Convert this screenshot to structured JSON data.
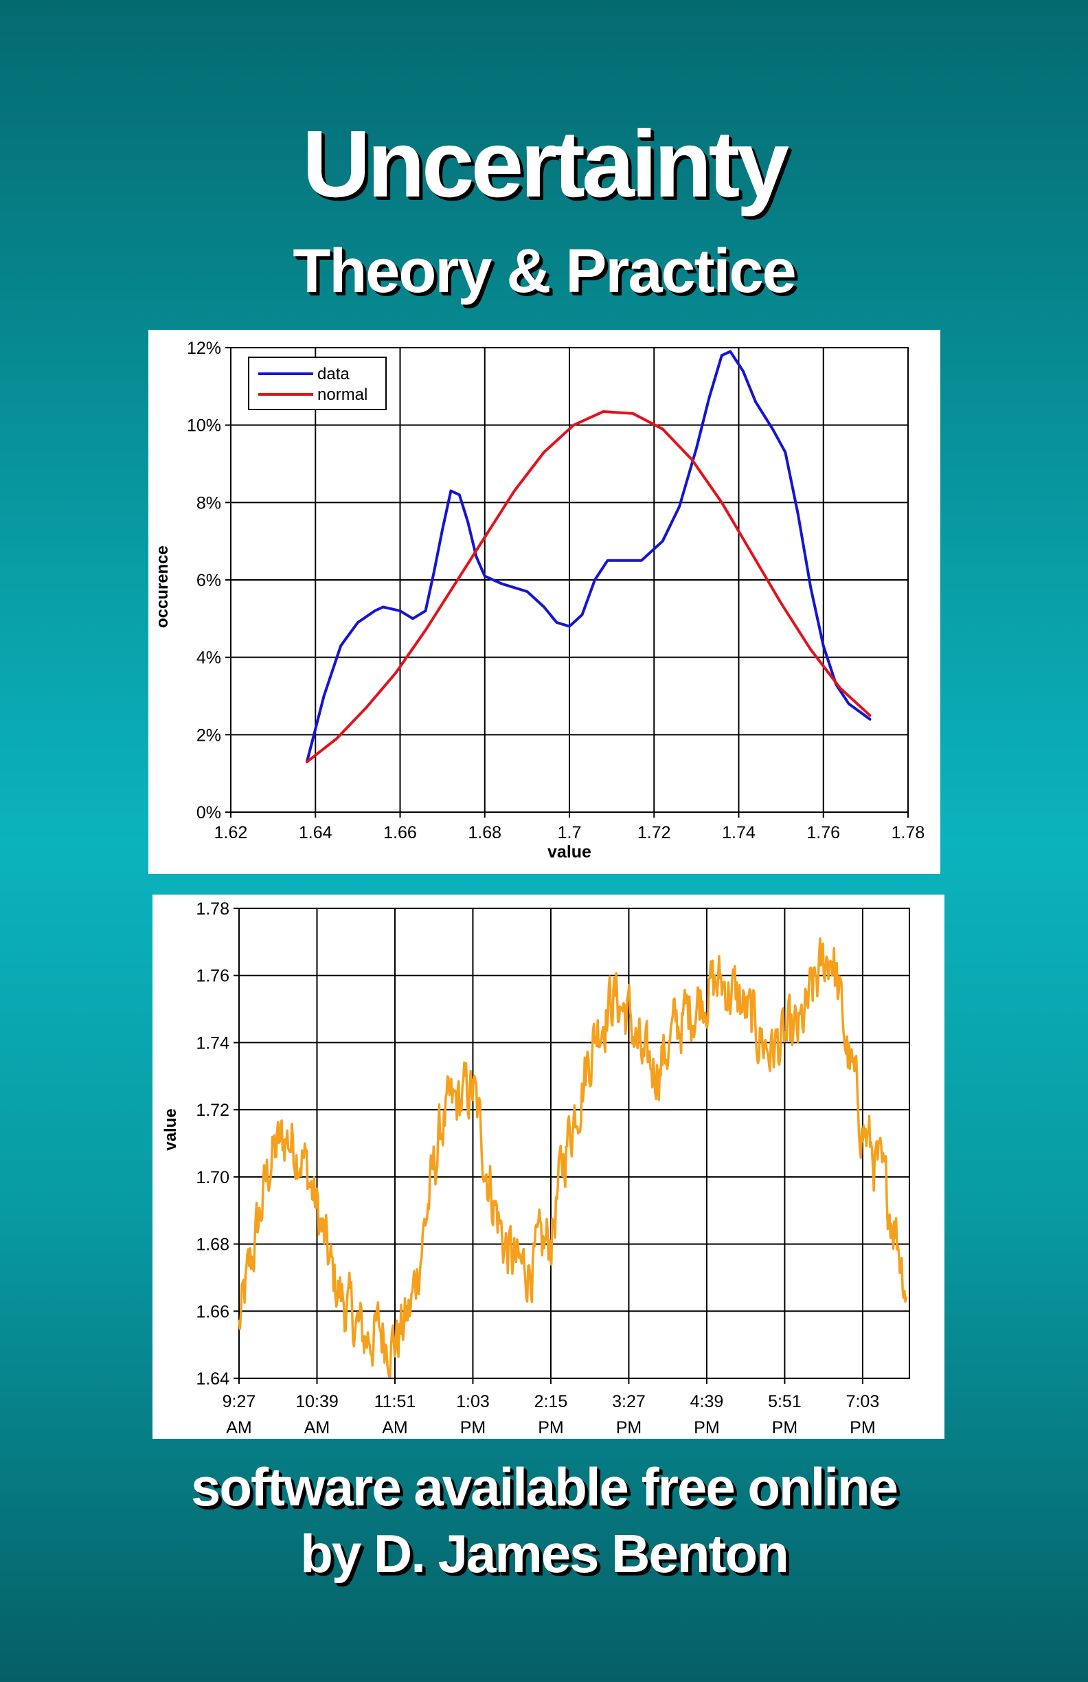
{
  "cover": {
    "title": "Uncertainty",
    "subtitle": "Theory & Practice",
    "footer_line1": "software available free online",
    "footer_line2": "by D. James Benton"
  },
  "colors": {
    "data": "#1515d0",
    "normal": "#e0141c",
    "timeseries": "#f5a01c"
  },
  "chart_data": [
    {
      "type": "line",
      "xlabel": "value",
      "ylabel": "occurence",
      "xlim": [
        1.62,
        1.78
      ],
      "ylim": [
        0,
        12
      ],
      "x_ticks": [
        "1.62",
        "1.64",
        "1.66",
        "1.68",
        "1.7",
        "1.72",
        "1.74",
        "1.76",
        "1.78"
      ],
      "y_ticks": [
        "0%",
        "2%",
        "4%",
        "6%",
        "8%",
        "10%",
        "12%"
      ],
      "grid": true,
      "legend": "top-left",
      "series": [
        {
          "name": "data",
          "color": "#1515d0",
          "points": [
            [
              1.638,
              1.3
            ],
            [
              1.642,
              3.0
            ],
            [
              1.646,
              4.3
            ],
            [
              1.65,
              4.9
            ],
            [
              1.654,
              5.2
            ],
            [
              1.656,
              5.3
            ],
            [
              1.66,
              5.2
            ],
            [
              1.663,
              5.0
            ],
            [
              1.666,
              5.2
            ],
            [
              1.668,
              6.2
            ],
            [
              1.67,
              7.3
            ],
            [
              1.672,
              8.3
            ],
            [
              1.674,
              8.2
            ],
            [
              1.676,
              7.5
            ],
            [
              1.678,
              6.6
            ],
            [
              1.68,
              6.1
            ],
            [
              1.684,
              5.9
            ],
            [
              1.69,
              5.7
            ],
            [
              1.694,
              5.3
            ],
            [
              1.697,
              4.9
            ],
            [
              1.7,
              4.8
            ],
            [
              1.703,
              5.1
            ],
            [
              1.706,
              6.0
            ],
            [
              1.709,
              6.5
            ],
            [
              1.714,
              6.5
            ],
            [
              1.717,
              6.5
            ],
            [
              1.722,
              7.0
            ],
            [
              1.726,
              7.9
            ],
            [
              1.73,
              9.4
            ],
            [
              1.733,
              10.7
            ],
            [
              1.736,
              11.8
            ],
            [
              1.738,
              11.9
            ],
            [
              1.741,
              11.4
            ],
            [
              1.744,
              10.6
            ],
            [
              1.748,
              9.9
            ],
            [
              1.751,
              9.3
            ],
            [
              1.754,
              7.7
            ],
            [
              1.757,
              5.8
            ],
            [
              1.76,
              4.3
            ],
            [
              1.763,
              3.3
            ],
            [
              1.766,
              2.8
            ],
            [
              1.771,
              2.4
            ]
          ]
        },
        {
          "name": "normal",
          "color": "#e0141c",
          "points": [
            [
              1.638,
              1.3
            ],
            [
              1.645,
              1.9
            ],
            [
              1.652,
              2.7
            ],
            [
              1.659,
              3.6
            ],
            [
              1.666,
              4.7
            ],
            [
              1.673,
              5.9
            ],
            [
              1.68,
              7.1
            ],
            [
              1.687,
              8.3
            ],
            [
              1.694,
              9.3
            ],
            [
              1.701,
              10.0
            ],
            [
              1.708,
              10.35
            ],
            [
              1.715,
              10.3
            ],
            [
              1.722,
              9.9
            ],
            [
              1.729,
              9.1
            ],
            [
              1.736,
              8.0
            ],
            [
              1.743,
              6.7
            ],
            [
              1.75,
              5.4
            ],
            [
              1.757,
              4.2
            ],
            [
              1.764,
              3.2
            ],
            [
              1.771,
              2.5
            ]
          ]
        }
      ]
    },
    {
      "type": "line",
      "xlabel": "",
      "ylabel": "value",
      "ylim": [
        1.64,
        1.78
      ],
      "x_ticks": [
        "9:27 AM",
        "10:39 AM",
        "11:51 AM",
        "1:03 PM",
        "2:15 PM",
        "3:27 PM",
        "4:39 PM",
        "5:51 PM",
        "7:03 PM"
      ],
      "y_ticks": [
        "1.64",
        "1.66",
        "1.68",
        "1.70",
        "1.72",
        "1.74",
        "1.76",
        "1.78"
      ],
      "grid": true,
      "series": [
        {
          "color": "#f5a01c",
          "noisy": true,
          "x": [
            0.0,
            0.2,
            0.4,
            0.6,
            0.8,
            1.0,
            1.2,
            1.4,
            1.6,
            1.8,
            2.0,
            2.2,
            2.4,
            2.6,
            2.8,
            3.0,
            3.2,
            3.4,
            3.6,
            3.8,
            4.0,
            4.2,
            4.4,
            4.6,
            4.8,
            5.0,
            5.2,
            5.4,
            5.6,
            5.8,
            6.0,
            6.2,
            6.4,
            6.6,
            6.8,
            7.0,
            7.2,
            7.4,
            7.6,
            7.8,
            8.0,
            8.2,
            8.4,
            8.56
          ],
          "values": [
            1.655,
            1.68,
            1.705,
            1.712,
            1.708,
            1.69,
            1.67,
            1.66,
            1.652,
            1.654,
            1.651,
            1.66,
            1.688,
            1.716,
            1.722,
            1.726,
            1.7,
            1.68,
            1.672,
            1.675,
            1.682,
            1.71,
            1.728,
            1.745,
            1.754,
            1.748,
            1.732,
            1.734,
            1.744,
            1.75,
            1.756,
            1.758,
            1.753,
            1.745,
            1.738,
            1.74,
            1.743,
            1.758,
            1.768,
            1.738,
            1.715,
            1.702,
            1.688,
            1.668
          ]
        }
      ]
    }
  ]
}
